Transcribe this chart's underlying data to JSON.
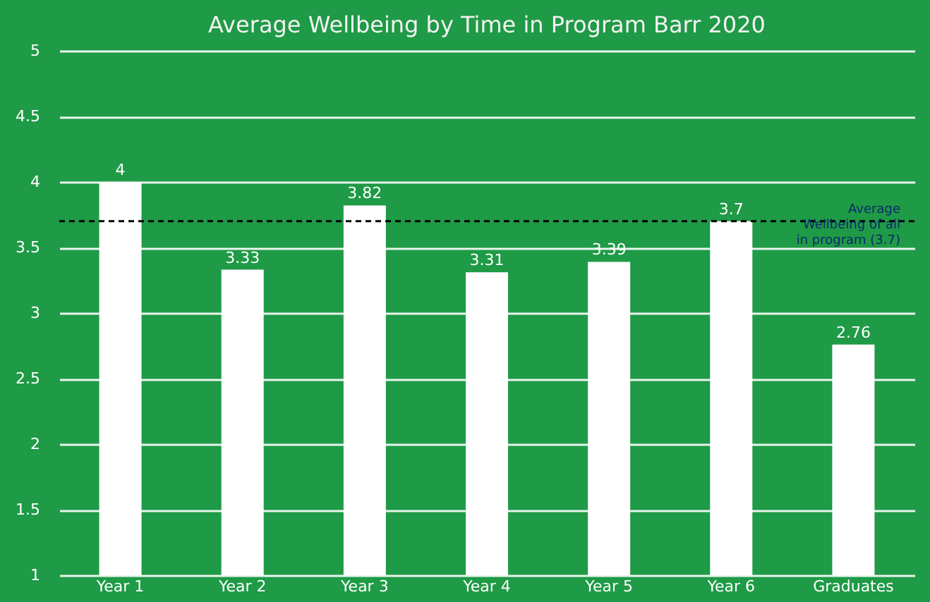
{
  "chart_data": {
    "type": "bar",
    "title": "Average Wellbeing by Time in Program Barr 2020",
    "categories": [
      "Year 1",
      "Year 2",
      "Year 3",
      "Year 4",
      "Year 5",
      "Year 6",
      "Graduates"
    ],
    "values": [
      4,
      3.33,
      3.82,
      3.31,
      3.39,
      3.7,
      2.76
    ],
    "color": "#ffffff",
    "data_labels": true,
    "ylim": [
      1,
      5
    ],
    "yticks": [
      1,
      1.5,
      2,
      2.5,
      3,
      3.5,
      4,
      4.5,
      5
    ],
    "grid": "y",
    "ref_lines": [
      {
        "axis": "y",
        "value": 3.7,
        "label": "Average Wellbeing of all in program (3.7)",
        "color": "#000000",
        "line_style": "dashed"
      }
    ]
  }
}
